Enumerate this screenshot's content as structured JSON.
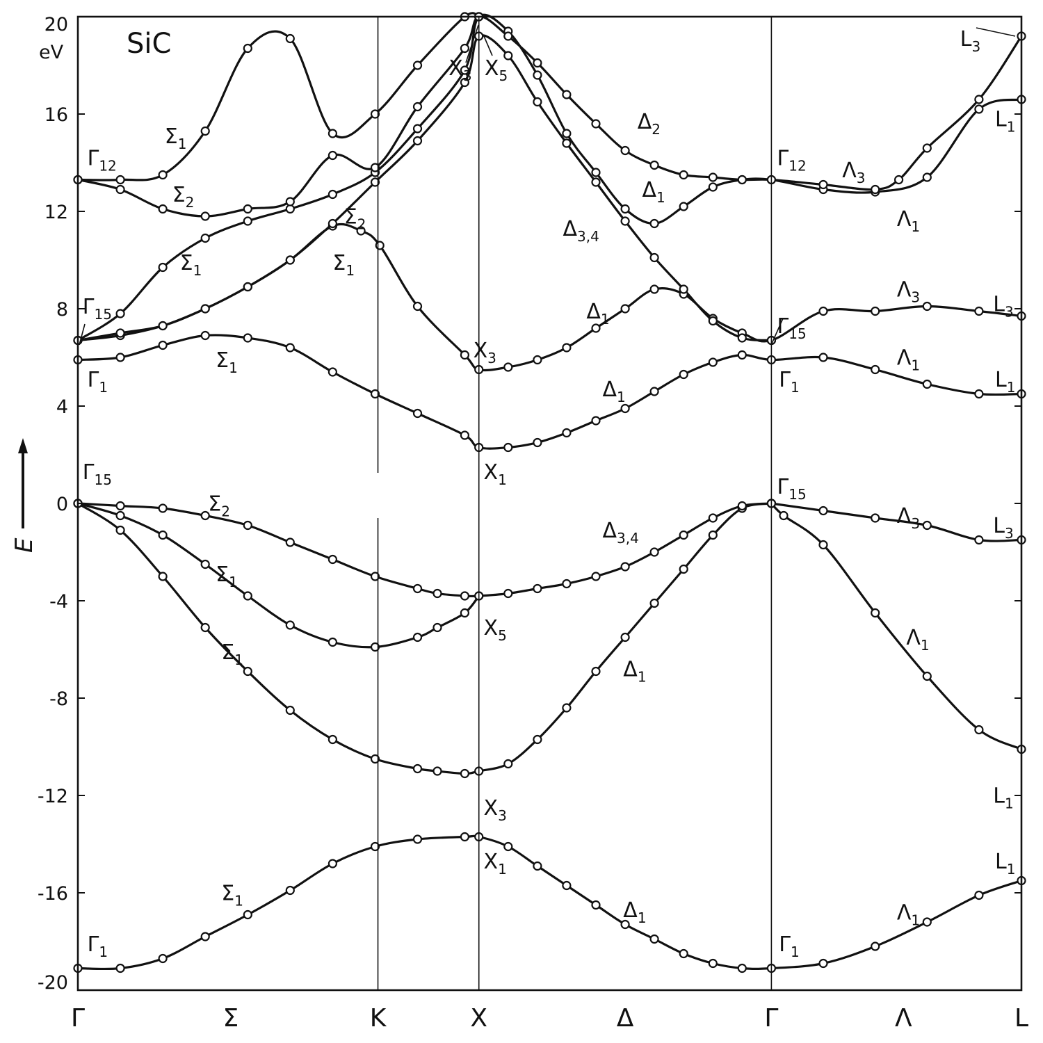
{
  "chart_data": {
    "type": "line",
    "title": "SiC",
    "ylabel": "E",
    "yunit": "eV",
    "ylim": [
      -20,
      20
    ],
    "yticks": [
      "-20",
      "-16",
      "-12",
      "-8",
      "-4",
      "0",
      "4",
      "8",
      "12",
      "16",
      "20"
    ],
    "xticks": [
      "Γ",
      "Σ",
      "K",
      "X",
      "Δ",
      "Γ",
      "Λ",
      "L"
    ],
    "grid": false,
    "series": [
      {
        "values": [
          [
            0,
            -19.1
          ],
          [
            0.045,
            -19.1
          ],
          [
            0.09,
            -18.7
          ],
          [
            0.135,
            -17.8
          ],
          [
            0.18,
            -16.9
          ],
          [
            0.225,
            -15.9
          ],
          [
            0.27,
            -14.8
          ],
          [
            0.315,
            -14.1
          ],
          [
            0.36,
            -13.8
          ],
          [
            0.41,
            -13.7
          ],
          [
            0.425,
            -13.7
          ],
          [
            0.456,
            -14.1
          ],
          [
            0.487,
            -14.9
          ],
          [
            0.518,
            -15.7
          ],
          [
            0.549,
            -16.5
          ],
          [
            0.58,
            -17.3
          ],
          [
            0.611,
            -17.9
          ],
          [
            0.642,
            -18.5
          ],
          [
            0.673,
            -18.9
          ],
          [
            0.704,
            -19.1
          ],
          [
            0.735,
            -19.1
          ],
          [
            0.79,
            -18.9
          ],
          [
            0.845,
            -18.2
          ],
          [
            0.9,
            -17.2
          ],
          [
            0.955,
            -16.1
          ],
          [
            1.0,
            -15.5
          ]
        ]
      },
      {
        "values": [
          [
            0,
            0
          ],
          [
            0.045,
            -1.1
          ],
          [
            0.09,
            -3.0
          ],
          [
            0.135,
            -5.1
          ],
          [
            0.18,
            -6.9
          ],
          [
            0.225,
            -8.5
          ],
          [
            0.27,
            -9.7
          ],
          [
            0.315,
            -10.5
          ],
          [
            0.36,
            -10.9
          ],
          [
            0.381,
            -11.0
          ],
          [
            0.41,
            -11.1
          ],
          [
            0.425,
            -11.0
          ],
          [
            0.456,
            -10.7
          ],
          [
            0.487,
            -9.7
          ],
          [
            0.518,
            -8.4
          ],
          [
            0.549,
            -6.9
          ],
          [
            0.58,
            -5.5
          ],
          [
            0.611,
            -4.1
          ],
          [
            0.642,
            -2.7
          ],
          [
            0.673,
            -1.3
          ],
          [
            0.704,
            -0.2
          ],
          [
            0.735,
            0
          ]
        ]
      },
      {
        "values": [
          [
            0,
            0
          ],
          [
            0.045,
            -0.1
          ],
          [
            0.09,
            -0.2
          ],
          [
            0.135,
            -0.5
          ],
          [
            0.18,
            -0.9
          ],
          [
            0.225,
            -1.6
          ],
          [
            0.27,
            -2.3
          ],
          [
            0.315,
            -3.0
          ],
          [
            0.36,
            -3.5
          ],
          [
            0.381,
            -3.7
          ],
          [
            0.41,
            -3.8
          ],
          [
            0.425,
            -3.8
          ],
          [
            0.456,
            -3.7
          ],
          [
            0.487,
            -3.5
          ],
          [
            0.518,
            -3.3
          ],
          [
            0.549,
            -3.0
          ],
          [
            0.58,
            -2.6
          ],
          [
            0.611,
            -2.0
          ],
          [
            0.642,
            -1.3
          ],
          [
            0.673,
            -0.6
          ],
          [
            0.704,
            -0.1
          ],
          [
            0.735,
            0
          ]
        ]
      },
      {
        "values": [
          [
            0,
            0
          ],
          [
            0.045,
            -0.5
          ],
          [
            0.09,
            -1.3
          ],
          [
            0.135,
            -2.5
          ],
          [
            0.18,
            -3.8
          ],
          [
            0.225,
            -5.0
          ],
          [
            0.27,
            -5.7
          ],
          [
            0.315,
            -5.9
          ],
          [
            0.36,
            -5.5
          ],
          [
            0.381,
            -5.1
          ],
          [
            0.41,
            -4.5
          ],
          [
            0.425,
            -3.8
          ]
        ]
      },
      {
        "values": [
          [
            0.735,
            0
          ],
          [
            0.79,
            -0.3
          ],
          [
            0.845,
            -0.6
          ],
          [
            0.9,
            -0.9
          ],
          [
            0.955,
            -1.5
          ],
          [
            1.0,
            -1.5
          ]
        ]
      },
      {
        "values": [
          [
            0.735,
            0
          ],
          [
            0.748,
            -0.5
          ],
          [
            0.79,
            -1.7
          ],
          [
            0.845,
            -4.5
          ],
          [
            0.9,
            -7.1
          ],
          [
            0.955,
            -9.3
          ],
          [
            1.0,
            -10.1
          ]
        ]
      },
      {
        "values": [
          [
            0,
            5.9
          ],
          [
            0.045,
            6.0
          ],
          [
            0.09,
            6.5
          ],
          [
            0.135,
            6.9
          ],
          [
            0.18,
            6.8
          ],
          [
            0.225,
            6.4
          ],
          [
            0.27,
            5.4
          ],
          [
            0.315,
            4.5
          ],
          [
            0.36,
            3.7
          ],
          [
            0.41,
            2.8
          ],
          [
            0.425,
            2.3
          ],
          [
            0.456,
            2.3
          ],
          [
            0.487,
            2.5
          ],
          [
            0.518,
            2.9
          ],
          [
            0.549,
            3.4
          ],
          [
            0.58,
            3.9
          ],
          [
            0.611,
            4.6
          ],
          [
            0.642,
            5.3
          ],
          [
            0.673,
            5.8
          ],
          [
            0.704,
            6.1
          ],
          [
            0.735,
            5.9
          ],
          [
            0.79,
            6.0
          ],
          [
            0.845,
            5.5
          ],
          [
            0.9,
            4.9
          ],
          [
            0.955,
            4.5
          ],
          [
            1.0,
            4.5
          ]
        ]
      },
      {
        "values": [
          [
            0,
            6.7
          ],
          [
            0.045,
            6.9
          ],
          [
            0.09,
            7.3
          ],
          [
            0.135,
            8.0
          ],
          [
            0.18,
            8.9
          ],
          [
            0.225,
            10.0
          ],
          [
            0.27,
            11.4
          ],
          [
            0.3,
            11.2
          ],
          [
            0.32,
            10.6
          ],
          [
            0.36,
            8.1
          ],
          [
            0.41,
            6.1
          ],
          [
            0.425,
            5.5
          ],
          [
            0.456,
            5.6
          ],
          [
            0.487,
            5.9
          ],
          [
            0.518,
            6.4
          ],
          [
            0.549,
            7.2
          ],
          [
            0.58,
            8.0
          ],
          [
            0.611,
            8.8
          ],
          [
            0.642,
            8.6
          ],
          [
            0.673,
            7.6
          ],
          [
            0.704,
            7.0
          ],
          [
            0.735,
            6.7
          ],
          [
            0.79,
            7.9
          ],
          [
            0.845,
            7.9
          ],
          [
            0.9,
            8.1
          ],
          [
            0.955,
            7.9
          ],
          [
            1.0,
            7.7
          ]
        ]
      },
      {
        "values": [
          [
            0,
            6.7
          ],
          [
            0.045,
            7.0
          ],
          [
            0.09,
            7.3
          ],
          [
            0.135,
            8.0
          ],
          [
            0.18,
            8.9
          ],
          [
            0.225,
            10.0
          ],
          [
            0.27,
            11.5
          ],
          [
            0.315,
            13.2
          ],
          [
            0.36,
            14.9
          ],
          [
            0.41,
            17.3
          ],
          [
            0.425,
            19.2
          ],
          [
            0.456,
            18.4
          ],
          [
            0.487,
            16.5
          ],
          [
            0.518,
            14.8
          ],
          [
            0.549,
            13.2
          ],
          [
            0.58,
            11.6
          ],
          [
            0.611,
            10.1
          ],
          [
            0.642,
            8.8
          ],
          [
            0.673,
            7.5
          ],
          [
            0.704,
            6.8
          ],
          [
            0.735,
            6.7
          ]
        ]
      },
      {
        "values": [
          [
            0,
            6.7
          ],
          [
            0.045,
            7.8
          ],
          [
            0.09,
            9.7
          ],
          [
            0.135,
            10.9
          ],
          [
            0.18,
            11.6
          ],
          [
            0.225,
            12.1
          ],
          [
            0.27,
            12.7
          ],
          [
            0.315,
            13.6
          ],
          [
            0.36,
            15.4
          ],
          [
            0.41,
            17.8
          ],
          [
            0.425,
            20.0
          ],
          [
            0.456,
            19.4
          ],
          [
            0.487,
            17.6
          ],
          [
            0.518,
            15.2
          ],
          [
            0.549,
            13.6
          ],
          [
            0.58,
            12.1
          ],
          [
            0.611,
            11.5
          ],
          [
            0.642,
            12.2
          ],
          [
            0.673,
            13.0
          ],
          [
            0.704,
            13.3
          ],
          [
            0.735,
            13.3
          ],
          [
            0.79,
            12.9
          ],
          [
            0.845,
            12.8
          ],
          [
            0.9,
            13.4
          ],
          [
            0.955,
            16.2
          ],
          [
            1.0,
            16.6
          ]
        ]
      },
      {
        "values": [
          [
            0,
            13.3
          ],
          [
            0.045,
            12.9
          ],
          [
            0.09,
            12.1
          ],
          [
            0.135,
            11.8
          ],
          [
            0.18,
            12.1
          ],
          [
            0.225,
            12.4
          ],
          [
            0.27,
            14.3
          ],
          [
            0.315,
            13.8
          ],
          [
            0.36,
            16.3
          ],
          [
            0.41,
            18.7
          ],
          [
            0.425,
            20.0
          ],
          [
            0.456,
            19.2
          ],
          [
            0.487,
            18.1
          ],
          [
            0.518,
            16.8
          ],
          [
            0.549,
            15.6
          ],
          [
            0.58,
            14.5
          ],
          [
            0.611,
            13.9
          ],
          [
            0.642,
            13.5
          ],
          [
            0.673,
            13.4
          ],
          [
            0.704,
            13.3
          ],
          [
            0.735,
            13.3
          ],
          [
            0.79,
            13.1
          ],
          [
            0.845,
            12.9
          ],
          [
            0.87,
            13.3
          ],
          [
            0.9,
            14.6
          ],
          [
            0.955,
            16.6
          ],
          [
            1.0,
            19.2
          ]
        ]
      },
      {
        "values": [
          [
            0,
            13.3
          ],
          [
            0.045,
            13.3
          ],
          [
            0.09,
            13.5
          ],
          [
            0.135,
            15.3
          ],
          [
            0.18,
            18.7
          ],
          [
            0.225,
            19.1
          ],
          [
            0.27,
            15.2
          ],
          [
            0.315,
            16.0
          ],
          [
            0.36,
            18.0
          ],
          [
            0.41,
            20.0
          ],
          [
            0.425,
            20.0
          ]
        ]
      }
    ],
    "labels": {
      "sigma1_top": "Σ1",
      "gamma12_left": "Γ12",
      "sigma2_upper": "Σ2",
      "sigma1_mid": "Σ1",
      "gamma15_left_up": "Γ15",
      "sigma2_k": "Σ2",
      "sigma1_k": "Σ1",
      "x3_top": "X3",
      "x5_top": "X5",
      "delta2": "Δ2",
      "delta1_upper": "Δ1",
      "delta34_upper": "Δ3,4",
      "delta1_cond": "Δ1",
      "x3_cond": "X3",
      "gamma12_mid": "Γ12",
      "lambda3_upper": "Λ3",
      "l3_top": "L3",
      "l1_top": "L1",
      "lambda1_upper": "Λ1",
      "lambda3_mid": "Λ3",
      "l3_mid": "L3",
      "gamma15_mid_up": "Γ15",
      "gamma1_left_up": "Γ1",
      "sigma1_lower_cond": "Σ1",
      "delta1_low_cond": "Δ1",
      "x1_cond": "X1",
      "gamma1_mid_up": "Γ1",
      "lambda1_low_cond": "Λ1",
      "l1_low_cond": "L1",
      "gamma15_left": "Γ15",
      "sigma2_val": "Σ2",
      "sigma1_val_a": "Σ1",
      "sigma1_val_b": "Σ1",
      "delta34_val": "Δ3,4",
      "x5_val": "X5",
      "gamma15_mid": "Γ15",
      "lambda3_val": "Λ3",
      "l3_val": "L3",
      "delta1_val": "Δ1",
      "x3_val": "X3",
      "lambda1_val": "Λ1",
      "l1_val": "L1",
      "sigma1_bottom": "Σ1",
      "x1_bottom": "X1",
      "delta1_bottom": "Δ1",
      "gamma1_left": "Γ1",
      "gamma1_mid": "Γ1",
      "lambda1_bottom": "Λ1",
      "l1_bottom": "L1"
    }
  }
}
